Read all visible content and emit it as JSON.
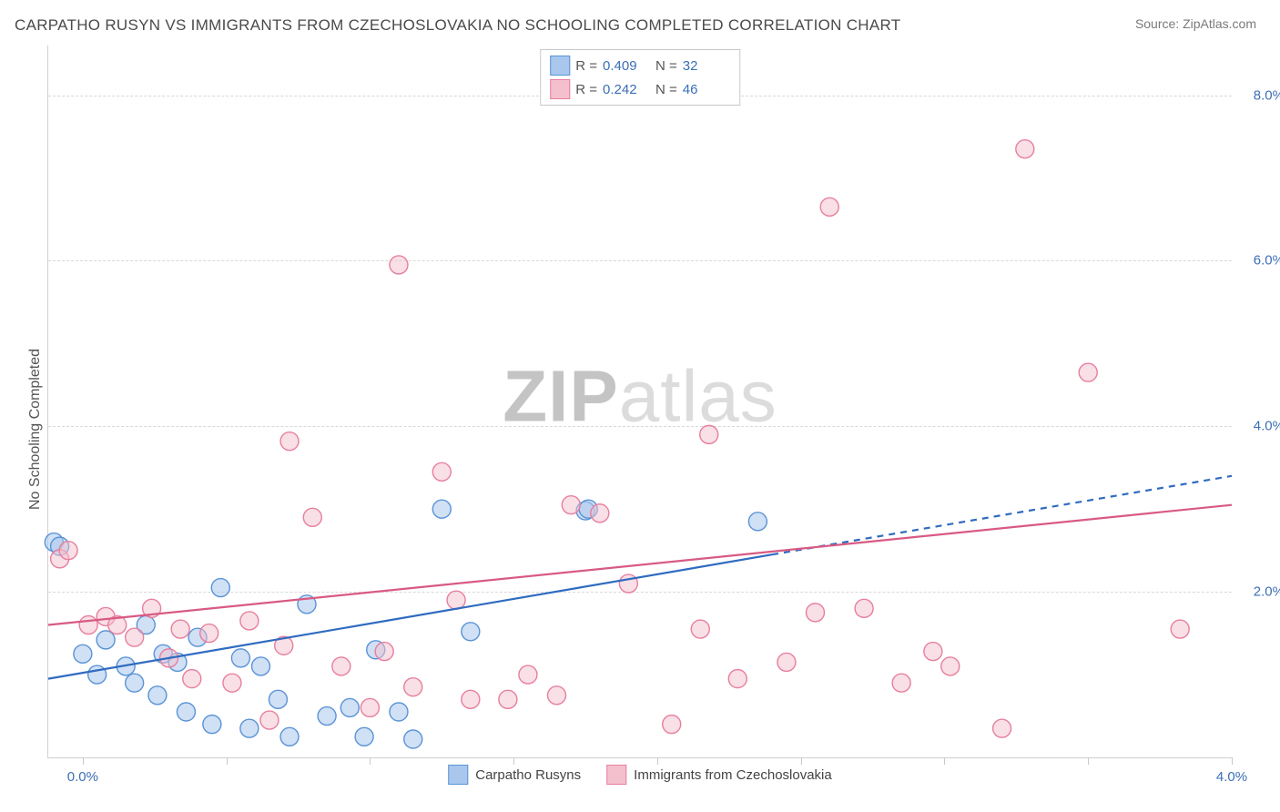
{
  "title": "CARPATHO RUSYN VS IMMIGRANTS FROM CZECHOSLOVAKIA NO SCHOOLING COMPLETED CORRELATION CHART",
  "source_label": "Source:",
  "source_value": "ZipAtlas.com",
  "y_axis_label": "No Schooling Completed",
  "watermark_a": "ZIP",
  "watermark_b": "atlas",
  "chart": {
    "type": "scatter-with-regression",
    "background_color": "#ffffff",
    "grid_color": "#d8d8d8",
    "axis_color": "#d0d0d0",
    "xlim": [
      -0.12,
      4.0
    ],
    "ylim": [
      0.0,
      8.6
    ],
    "y_ticks": [
      2.0,
      4.0,
      6.0,
      8.0
    ],
    "y_tick_labels": [
      "2.0%",
      "4.0%",
      "6.0%",
      "8.0%"
    ],
    "x_ticks": [
      0.0,
      0.5,
      1.0,
      1.5,
      2.0,
      2.5,
      3.0,
      3.5,
      4.0
    ],
    "x_tick_labels_shown": {
      "0.0": "0.0%",
      "4.0": "4.0%"
    },
    "marker_radius": 10,
    "marker_stroke_width": 1.4,
    "line_width": 2.2,
    "series": [
      {
        "name": "Carpatho Rusyns",
        "fill": "#a9c7ec",
        "stroke": "#5a93d6",
        "fill_opacity": 0.55,
        "R": "0.409",
        "N": "32",
        "trend": {
          "solid": [
            [
              -0.12,
              0.95
            ],
            [
              2.4,
              2.45
            ]
          ],
          "dashed": [
            [
              2.4,
              2.45
            ],
            [
              4.0,
              3.4
            ]
          ],
          "color": "#2f6bc0"
        },
        "points": [
          [
            -0.1,
            2.6
          ],
          [
            -0.08,
            2.55
          ],
          [
            0.0,
            1.25
          ],
          [
            0.05,
            1.0
          ],
          [
            0.08,
            1.42
          ],
          [
            0.15,
            1.1
          ],
          [
            0.18,
            0.9
          ],
          [
            0.22,
            1.6
          ],
          [
            0.26,
            0.75
          ],
          [
            0.28,
            1.25
          ],
          [
            0.33,
            1.15
          ],
          [
            0.36,
            0.55
          ],
          [
            0.4,
            1.45
          ],
          [
            0.45,
            0.4
          ],
          [
            0.48,
            2.05
          ],
          [
            0.55,
            1.2
          ],
          [
            0.58,
            0.35
          ],
          [
            0.62,
            1.1
          ],
          [
            0.68,
            0.7
          ],
          [
            0.72,
            0.25
          ],
          [
            0.78,
            1.85
          ],
          [
            0.85,
            0.5
          ],
          [
            0.93,
            0.6
          ],
          [
            0.98,
            0.25
          ],
          [
            1.02,
            1.3
          ],
          [
            1.1,
            0.55
          ],
          [
            1.15,
            0.22
          ],
          [
            1.25,
            3.0
          ],
          [
            1.35,
            1.52
          ],
          [
            1.75,
            2.98
          ],
          [
            1.76,
            3.0
          ],
          [
            2.35,
            2.85
          ]
        ]
      },
      {
        "name": "Immigrants from Czechoslovakia",
        "fill": "#f4c0cd",
        "stroke": "#e77f9d",
        "fill_opacity": 0.5,
        "R": "0.242",
        "N": "46",
        "trend": {
          "solid": [
            [
              -0.12,
              1.6
            ],
            [
              4.0,
              3.05
            ]
          ],
          "color": "#d85a82"
        },
        "points": [
          [
            -0.08,
            2.4
          ],
          [
            -0.05,
            2.5
          ],
          [
            0.02,
            1.6
          ],
          [
            0.08,
            1.7
          ],
          [
            0.12,
            1.6
          ],
          [
            0.18,
            1.45
          ],
          [
            0.24,
            1.8
          ],
          [
            0.3,
            1.2
          ],
          [
            0.34,
            1.55
          ],
          [
            0.38,
            0.95
          ],
          [
            0.44,
            1.5
          ],
          [
            0.52,
            0.9
          ],
          [
            0.58,
            1.65
          ],
          [
            0.65,
            0.45
          ],
          [
            0.7,
            1.35
          ],
          [
            0.72,
            3.82
          ],
          [
            0.8,
            2.9
          ],
          [
            0.9,
            1.1
          ],
          [
            1.0,
            0.6
          ],
          [
            1.05,
            1.28
          ],
          [
            1.1,
            5.95
          ],
          [
            1.15,
            0.85
          ],
          [
            1.25,
            3.45
          ],
          [
            1.3,
            1.9
          ],
          [
            1.35,
            0.7
          ],
          [
            1.48,
            0.7
          ],
          [
            1.55,
            1.0
          ],
          [
            1.65,
            0.75
          ],
          [
            1.7,
            3.05
          ],
          [
            1.8,
            2.95
          ],
          [
            1.9,
            2.1
          ],
          [
            2.05,
            0.4
          ],
          [
            2.15,
            1.55
          ],
          [
            2.18,
            3.9
          ],
          [
            2.28,
            0.95
          ],
          [
            2.45,
            1.15
          ],
          [
            2.55,
            1.75
          ],
          [
            2.6,
            6.65
          ],
          [
            2.72,
            1.8
          ],
          [
            2.85,
            0.9
          ],
          [
            2.96,
            1.28
          ],
          [
            3.02,
            1.1
          ],
          [
            3.2,
            0.35
          ],
          [
            3.28,
            7.35
          ],
          [
            3.5,
            4.65
          ],
          [
            3.82,
            1.55
          ]
        ]
      }
    ]
  },
  "legend_top_labels": {
    "R": "R =",
    "N": "N ="
  },
  "legend_bottom": [
    "Carpatho Rusyns",
    "Immigrants from Czechoslovakia"
  ]
}
